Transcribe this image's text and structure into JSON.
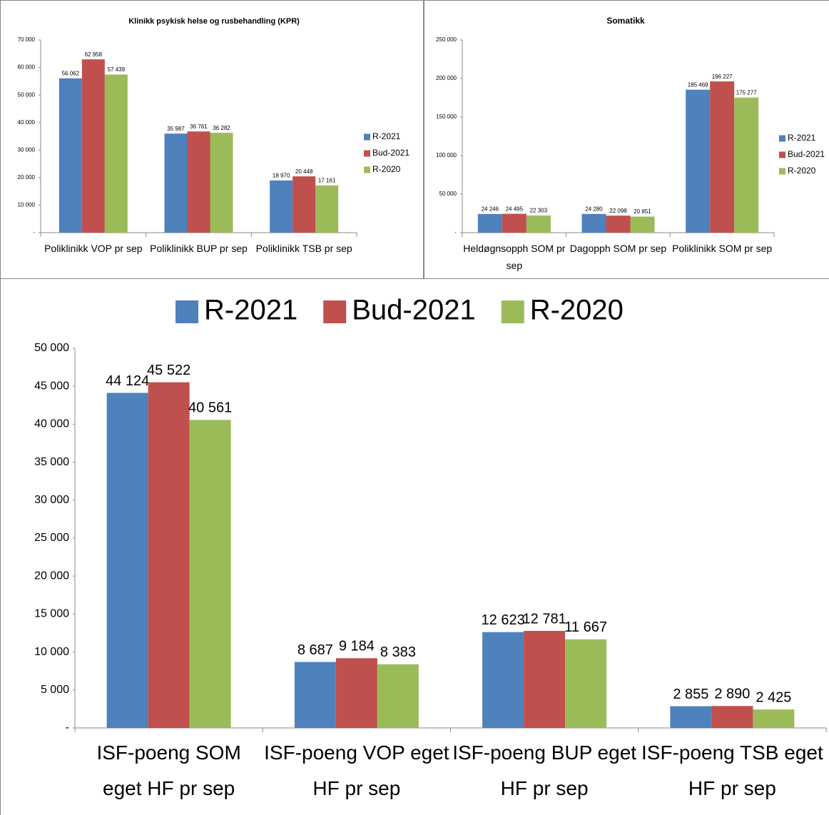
{
  "chart_data": [
    {
      "type": "bar",
      "title": "Klinikk psykisk helse og rusbehandling (KPR)",
      "categories": [
        "Poliklinikk VOP pr sep",
        "Poliklinikk BUP pr sep",
        "Poliklinikk TSB pr sep"
      ],
      "series": [
        {
          "name": "R-2021",
          "color": "#4f81bd",
          "values": [
            56062,
            35987,
            18970
          ],
          "value_labels": [
            "56 062",
            "35 987",
            "18 970"
          ]
        },
        {
          "name": "Bud-2021",
          "color": "#c0504d",
          "values": [
            62958,
            36761,
            20448
          ],
          "value_labels": [
            "62 958",
            "36 761",
            "20 448"
          ]
        },
        {
          "name": "R-2020",
          "color": "#9bbb59",
          "values": [
            57439,
            36282,
            17161
          ],
          "value_labels": [
            "57 439",
            "36 282",
            "17 161"
          ]
        }
      ],
      "ylim": [
        0,
        70000
      ],
      "yticks": [
        {
          "value": 0,
          "label": "-"
        },
        {
          "value": 10000,
          "label": "10 000"
        },
        {
          "value": 20000,
          "label": "20 000"
        },
        {
          "value": 30000,
          "label": "30 000"
        },
        {
          "value": 40000,
          "label": "40 000"
        },
        {
          "value": 50000,
          "label": "50 000"
        },
        {
          "value": 60000,
          "label": "60 000"
        },
        {
          "value": 70000,
          "label": "70 000"
        }
      ],
      "legend": "right"
    },
    {
      "type": "bar",
      "title": "Somatikk",
      "categories": [
        "Heldøgnsopph SOM pr sep",
        "Dagopph SOM pr sep",
        "Poliklinikk SOM pr sep"
      ],
      "series": [
        {
          "name": "R-2021",
          "color": "#4f81bd",
          "values": [
            24246,
            24280,
            185469
          ],
          "value_labels": [
            "24 246",
            "24 280",
            "185 469"
          ]
        },
        {
          "name": "Bud-2021",
          "color": "#c0504d",
          "values": [
            24495,
            22098,
            196227
          ],
          "value_labels": [
            "24 495",
            "22 098",
            "196 227"
          ]
        },
        {
          "name": "R-2020",
          "color": "#9bbb59",
          "values": [
            22303,
            20851,
            175277
          ],
          "value_labels": [
            "22 303",
            "20 851",
            "175 277"
          ]
        }
      ],
      "ylim": [
        0,
        250000
      ],
      "yticks": [
        {
          "value": 0,
          "label": "-"
        },
        {
          "value": 50000,
          "label": "50 000"
        },
        {
          "value": 100000,
          "label": "100 000"
        },
        {
          "value": 150000,
          "label": "150 000"
        },
        {
          "value": 200000,
          "label": "200 000"
        },
        {
          "value": 250000,
          "label": "250 000"
        }
      ],
      "legend": "right"
    },
    {
      "type": "bar",
      "categories": [
        "ISF-poeng SOM eget HF pr sep",
        "ISF-poeng VOP eget HF pr sep",
        "ISF-poeng BUP eget HF pr sep",
        "ISF-poeng TSB eget HF pr sep"
      ],
      "series": [
        {
          "name": "R-2021",
          "color": "#4f81bd",
          "values": [
            44124,
            8687,
            12623,
            2855
          ],
          "value_labels": [
            "44 124",
            "8 687",
            "12 623",
            "2 855"
          ]
        },
        {
          "name": "Bud-2021",
          "color": "#c0504d",
          "values": [
            45522,
            9184,
            12781,
            2890
          ],
          "value_labels": [
            "45 522",
            "9 184",
            "12 781",
            "2 890"
          ]
        },
        {
          "name": "R-2020",
          "color": "#9bbb59",
          "values": [
            40561,
            8383,
            11667,
            2425
          ],
          "value_labels": [
            "40 561",
            "8 383",
            "11 667",
            "2 425"
          ]
        }
      ],
      "ylim": [
        0,
        50000
      ],
      "yticks": [
        {
          "value": 0,
          "label": "-"
        },
        {
          "value": 5000,
          "label": "5 000"
        },
        {
          "value": 10000,
          "label": "10 000"
        },
        {
          "value": 15000,
          "label": "15 000"
        },
        {
          "value": 20000,
          "label": "20 000"
        },
        {
          "value": 25000,
          "label": "25 000"
        },
        {
          "value": 30000,
          "label": "30 000"
        },
        {
          "value": 35000,
          "label": "35 000"
        },
        {
          "value": 40000,
          "label": "40 000"
        },
        {
          "value": 45000,
          "label": "45 000"
        },
        {
          "value": 50000,
          "label": "50 000"
        }
      ],
      "legend": "top"
    }
  ]
}
